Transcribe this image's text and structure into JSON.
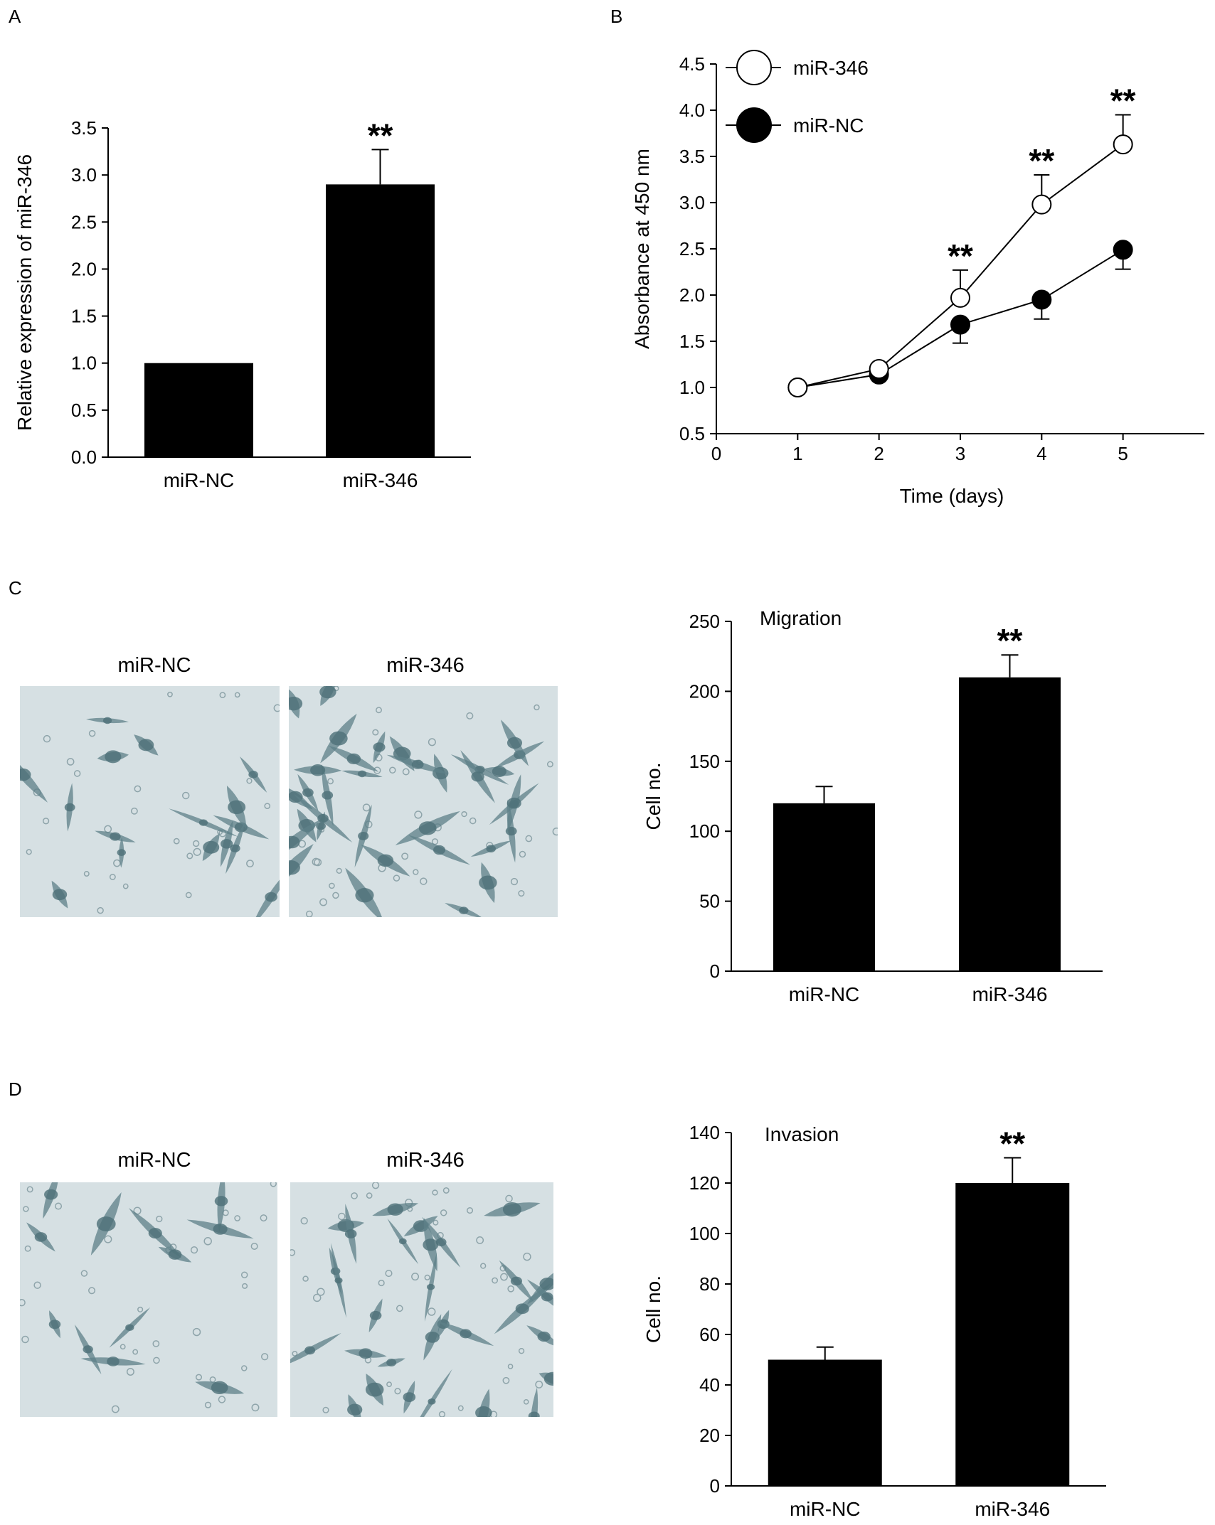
{
  "panels": {
    "a": "A",
    "b": "B",
    "c": "C",
    "d": "D"
  },
  "micrographs": {
    "c": {
      "left_label": "miR-NC",
      "right_label": "miR-346"
    },
    "d": {
      "left_label": "miR-NC",
      "right_label": "miR-346"
    }
  },
  "colors": {
    "bar": "#000000",
    "cell_background": "#d6e0e3",
    "cell_stain": "#5d8088"
  },
  "chart_data": [
    {
      "id": "a",
      "type": "bar",
      "categories": [
        "miR-NC",
        "miR-346"
      ],
      "values": [
        1.0,
        2.9
      ],
      "errors": [
        0,
        0.37
      ],
      "significance": [
        "",
        "**"
      ],
      "title": "",
      "xlabel": "",
      "ylabel": "Relative expression of miR-346",
      "ylim": [
        0,
        3.5
      ],
      "yticks": [
        0.0,
        0.5,
        1.0,
        1.5,
        2.0,
        2.5,
        3.0,
        3.5
      ],
      "ytick_labels": [
        "0.0",
        "0.5",
        "1.0",
        "1.5",
        "2.0",
        "2.5",
        "3.0",
        "3.5"
      ]
    },
    {
      "id": "b",
      "type": "line",
      "x": [
        1,
        2,
        3,
        4,
        5
      ],
      "series": [
        {
          "name": "miR-346",
          "marker": "open-circle",
          "values": [
            1.0,
            1.2,
            1.97,
            2.98,
            3.63
          ],
          "errors": [
            0,
            0,
            0.3,
            0.32,
            0.32
          ]
        },
        {
          "name": "miR-NC",
          "marker": "filled-circle",
          "values": [
            1.0,
            1.14,
            1.68,
            1.95,
            2.49
          ],
          "errors": [
            0,
            0,
            0.2,
            0.21,
            0.21
          ]
        }
      ],
      "significance": [
        "",
        "",
        "**",
        "**",
        "**"
      ],
      "xlabel": "Time (days)",
      "ylabel": "Absorbance at 450 nm",
      "xlim": [
        0,
        6
      ],
      "xticks": [
        0,
        1,
        2,
        3,
        4,
        5
      ],
      "xtick_labels": [
        "0",
        "1",
        "2",
        "3",
        "4",
        "5"
      ],
      "ylim": [
        0.5,
        4.5
      ],
      "yticks": [
        0.5,
        1.0,
        1.5,
        2.0,
        2.5,
        3.0,
        3.5,
        4.0,
        4.5
      ],
      "ytick_labels": [
        "0.5",
        "1.0",
        "1.5",
        "2.0",
        "2.5",
        "3.0",
        "3.5",
        "4.0",
        "4.5"
      ],
      "legend_position": "top-left"
    },
    {
      "id": "c",
      "type": "bar",
      "annotation": "Migration",
      "categories": [
        "miR-NC",
        "miR-346"
      ],
      "values": [
        120,
        210
      ],
      "errors": [
        12,
        16
      ],
      "significance": [
        "",
        "**"
      ],
      "xlabel": "",
      "ylabel": "Cell no.",
      "ylim": [
        0,
        250
      ],
      "yticks": [
        0,
        50,
        100,
        150,
        200,
        250
      ],
      "ytick_labels": [
        "0",
        "50",
        "100",
        "150",
        "200",
        "250"
      ]
    },
    {
      "id": "d",
      "type": "bar",
      "annotation": "Invasion",
      "categories": [
        "miR-NC",
        "miR-346"
      ],
      "values": [
        50,
        120
      ],
      "errors": [
        5,
        10
      ],
      "significance": [
        "",
        "**"
      ],
      "xlabel": "",
      "ylabel": "Cell no.",
      "ylim": [
        0,
        140
      ],
      "yticks": [
        0,
        20,
        40,
        60,
        80,
        100,
        120,
        140
      ],
      "ytick_labels": [
        "0",
        "20",
        "40",
        "60",
        "80",
        "100",
        "120",
        "140"
      ]
    }
  ]
}
